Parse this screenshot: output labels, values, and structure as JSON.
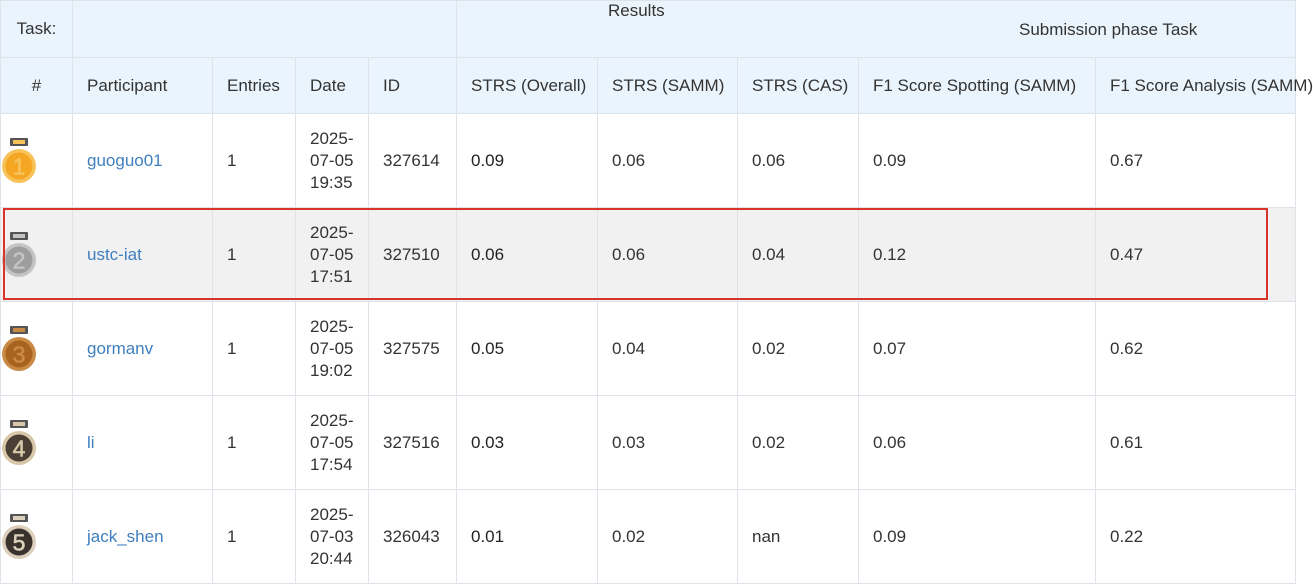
{
  "header": {
    "task_label": "Task:",
    "results_label": "Results",
    "phase_label": "Submission phase Task"
  },
  "columns": [
    "#",
    "Participant",
    "Entries",
    "Date",
    "ID",
    "STRS (Overall)",
    "STRS (SAMM)",
    "STRS (CAS)",
    "F1 Score Spotting (SAMM)",
    "F1 Score Analysis (SAMM)"
  ],
  "rows": [
    {
      "rank": "1",
      "participant": "guoguo01",
      "entries": "1",
      "date": [
        "2025-",
        "07-05",
        "19:35"
      ],
      "id": "327614",
      "strs_overall": "0.09",
      "strs_samm": "0.06",
      "strs_cas": "0.06",
      "f1_spotting_samm": "0.09",
      "f1_analysis_samm": "0.67"
    },
    {
      "rank": "2",
      "participant": "ustc-iat",
      "entries": "1",
      "date": [
        "2025-",
        "07-05",
        "17:51"
      ],
      "id": "327510",
      "strs_overall": "0.06",
      "strs_samm": "0.06",
      "strs_cas": "0.04",
      "f1_spotting_samm": "0.12",
      "f1_analysis_samm": "0.47"
    },
    {
      "rank": "3",
      "participant": "gormanv",
      "entries": "1",
      "date": [
        "2025-",
        "07-05",
        "19:02"
      ],
      "id": "327575",
      "strs_overall": "0.05",
      "strs_samm": "0.04",
      "strs_cas": "0.02",
      "f1_spotting_samm": "0.07",
      "f1_analysis_samm": "0.62"
    },
    {
      "rank": "4",
      "participant": "li",
      "entries": "1",
      "date": [
        "2025-",
        "07-05",
        "17:54"
      ],
      "id": "327516",
      "strs_overall": "0.03",
      "strs_samm": "0.03",
      "strs_cas": "0.02",
      "f1_spotting_samm": "0.06",
      "f1_analysis_samm": "0.61"
    },
    {
      "rank": "5",
      "participant": "jack_shen",
      "entries": "1",
      "date": [
        "2025-",
        "07-03",
        "20:44"
      ],
      "id": "326043",
      "strs_overall": "0.01",
      "strs_samm": "0.02",
      "strs_cas": "nan",
      "f1_spotting_samm": "0.09",
      "f1_analysis_samm": "0.22"
    }
  ],
  "medals": [
    {
      "icon": "gold-medal-icon",
      "color": "#f5a623",
      "ring": "#f7c25a"
    },
    {
      "icon": "silver-medal-icon",
      "color": "#9d9d9d",
      "ring": "#c4c4c4"
    },
    {
      "icon": "bronze-medal-icon",
      "color": "#a8641e",
      "ring": "#c98a45"
    },
    {
      "icon": "medal-4-icon",
      "color": "#4a3f35",
      "ring": "#d8c7a8"
    },
    {
      "icon": "medal-5-icon",
      "color": "#3a322c",
      "ring": "#dcd0bd"
    }
  ],
  "selected_row": 1,
  "colors": {
    "header_bg": "#eaf4fc",
    "link": "#3f7fbf",
    "selection_border": "#d9342b",
    "selected_bg": "#f1f1f1"
  }
}
